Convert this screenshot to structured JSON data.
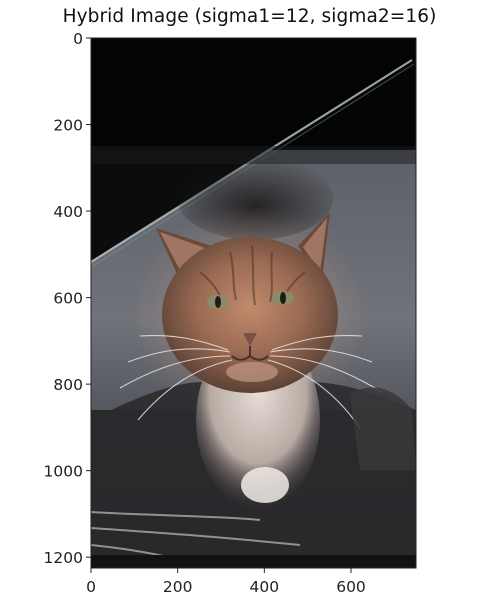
{
  "figure": {
    "title": "Hybrid Image (sigma1=12, sigma2=16)"
  },
  "chart_data": {
    "type": "image",
    "title": "Hybrid Image (sigma1=12, sigma2=16)",
    "xlabel": "",
    "ylabel": "",
    "xlim": [
      0,
      750
    ],
    "ylim": [
      1225,
      0
    ],
    "x_ticks": [
      0,
      200,
      400,
      600
    ],
    "y_ticks": [
      0,
      200,
      400,
      600,
      800,
      1000,
      1200
    ],
    "grid": false,
    "colors": {
      "background_top": "#020202",
      "wall_gray": "#6e7176",
      "fur_orange": "#b07a5e",
      "beard_white": "#e9dfd8"
    }
  }
}
